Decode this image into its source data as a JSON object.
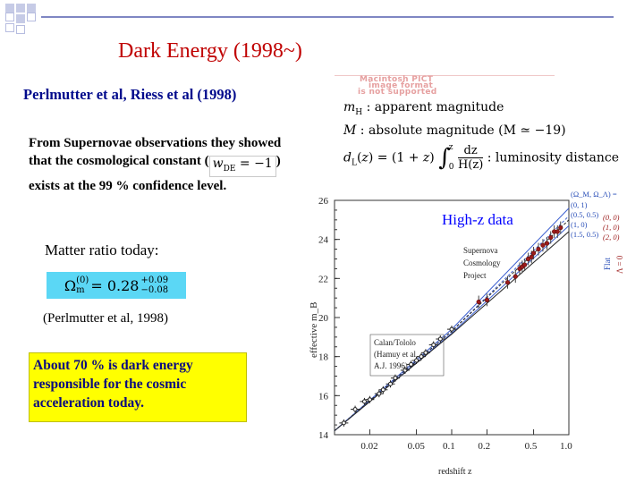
{
  "slide": {
    "title": "Dark Energy (1998~)",
    "subtitle": "Perlmutter et al,  Riess et al (1998)",
    "intro_before": "From Supernovae observations they showed that the cosmological constant (",
    "intro_formula": "w_DE = −1",
    "intro_after": ") exists at the 99 % confidence level.",
    "matter_ratio_label": "Matter ratio today:",
    "matter_ratio_symbol": "Ω",
    "matter_ratio_sub": "m",
    "matter_ratio_sup": "(0)",
    "matter_ratio_value": " = 0.28",
    "matter_ratio_err_plus": "+0.09",
    "matter_ratio_err_minus": "−0.08",
    "citation": "(Perlmutter et al, 1998)",
    "highlight_text": "About 70 % is dark energy responsible for the cosmic acceleration today."
  },
  "unsupported_image": {
    "line1": "Macintosh PICT",
    "line2": "image format",
    "line3": "is not supported"
  },
  "definitions": {
    "apparent_symbol": "m_H",
    "apparent_text": ":  apparent magnitude",
    "absolute_symbol": "M",
    "absolute_text": ":  absolute magnitude (M ≃ −19)",
    "luminosity_lhs": "d_L(z) = (1 + z)",
    "integral_upper": "z",
    "integral_lower": "0",
    "frac_num": "dz",
    "frac_den": "H(z)",
    "luminosity_text": ":  luminosity distance"
  },
  "plot_label": "High-z data",
  "chart_data": {
    "type": "scatter",
    "xlabel": "redshift z",
    "ylabel": "effective m_B",
    "xscale": "log",
    "x_ticks": [
      "0.02",
      "0.05",
      "0.1",
      "0.2",
      "0.5",
      "1.0"
    ],
    "y_ticks": [
      "14",
      "16",
      "18",
      "20",
      "22",
      "24",
      "26"
    ],
    "ylim": [
      14,
      26
    ],
    "xlim": [
      0.01,
      1.0
    ],
    "annotations": [
      "Supernova Cosmology Project",
      "Calan/Tololo (Hamuy et al, A.J. 1996)"
    ],
    "legend_header": "(Ω_M, Ω_Λ) =",
    "legend_entries_blue": [
      "(0,  1)",
      "(0.5, 0.5)",
      "(1,  0)",
      "(1.5, 0.5)"
    ],
    "legend_entries_red": [
      "(0, 0)",
      "(1, 0)",
      "(2, 0)"
    ],
    "side_labels": [
      "Flat",
      "Λ = 0"
    ],
    "low_z_points": [
      {
        "x": 0.012,
        "y": 14.6
      },
      {
        "x": 0.015,
        "y": 15.3
      },
      {
        "x": 0.018,
        "y": 15.7
      },
      {
        "x": 0.02,
        "y": 15.8
      },
      {
        "x": 0.024,
        "y": 16.1
      },
      {
        "x": 0.026,
        "y": 16.3
      },
      {
        "x": 0.03,
        "y": 16.6
      },
      {
        "x": 0.033,
        "y": 16.9
      },
      {
        "x": 0.04,
        "y": 17.3
      },
      {
        "x": 0.045,
        "y": 17.6
      },
      {
        "x": 0.05,
        "y": 17.8
      },
      {
        "x": 0.055,
        "y": 18.0
      },
      {
        "x": 0.06,
        "y": 18.2
      },
      {
        "x": 0.07,
        "y": 18.6
      },
      {
        "x": 0.08,
        "y": 18.9
      },
      {
        "x": 0.1,
        "y": 19.4
      }
    ],
    "high_z_points": [
      {
        "x": 0.17,
        "y": 20.8
      },
      {
        "x": 0.2,
        "y": 20.9
      },
      {
        "x": 0.3,
        "y": 21.8
      },
      {
        "x": 0.35,
        "y": 22.1
      },
      {
        "x": 0.38,
        "y": 22.5
      },
      {
        "x": 0.4,
        "y": 22.6
      },
      {
        "x": 0.42,
        "y": 22.7
      },
      {
        "x": 0.45,
        "y": 23.0
      },
      {
        "x": 0.48,
        "y": 23.1
      },
      {
        "x": 0.5,
        "y": 23.3
      },
      {
        "x": 0.55,
        "y": 23.5
      },
      {
        "x": 0.6,
        "y": 23.7
      },
      {
        "x": 0.65,
        "y": 23.8
      },
      {
        "x": 0.7,
        "y": 24.1
      },
      {
        "x": 0.75,
        "y": 24.4
      },
      {
        "x": 0.8,
        "y": 24.4
      },
      {
        "x": 0.85,
        "y": 24.6
      }
    ],
    "models": [
      {
        "name": "(0, 1)",
        "color": "#3c5fd0",
        "values_at": [
          [
            0.01,
            14.2
          ],
          [
            0.1,
            19.4
          ],
          [
            1.0,
            25.6
          ]
        ]
      },
      {
        "name": "(0.5, 0.5)",
        "color": "#3c5fd0",
        "values_at": [
          [
            0.01,
            14.2
          ],
          [
            0.1,
            19.3
          ],
          [
            1.0,
            25.2
          ]
        ]
      },
      {
        "name": "(1, 0)",
        "color": "#3c5fd0",
        "values_at": [
          [
            0.01,
            14.2
          ],
          [
            0.1,
            19.2
          ],
          [
            1.0,
            24.7
          ]
        ]
      },
      {
        "name": "(0, 0)",
        "color": "#2a2a2a",
        "values_at": [
          [
            0.01,
            14.2
          ],
          [
            0.1,
            19.3
          ],
          [
            1.0,
            25.0
          ]
        ]
      },
      {
        "name": "(2, 0)",
        "color": "#2a2a2a",
        "values_at": [
          [
            0.01,
            14.2
          ],
          [
            0.1,
            19.15
          ],
          [
            1.0,
            24.4
          ]
        ]
      }
    ]
  },
  "colors": {
    "title": "#c00000",
    "subtitle": "#000a8c",
    "formula_bg": "#5bd7f5",
    "highlight_bg": "#ffff00",
    "plot_label": "#0000ff"
  }
}
